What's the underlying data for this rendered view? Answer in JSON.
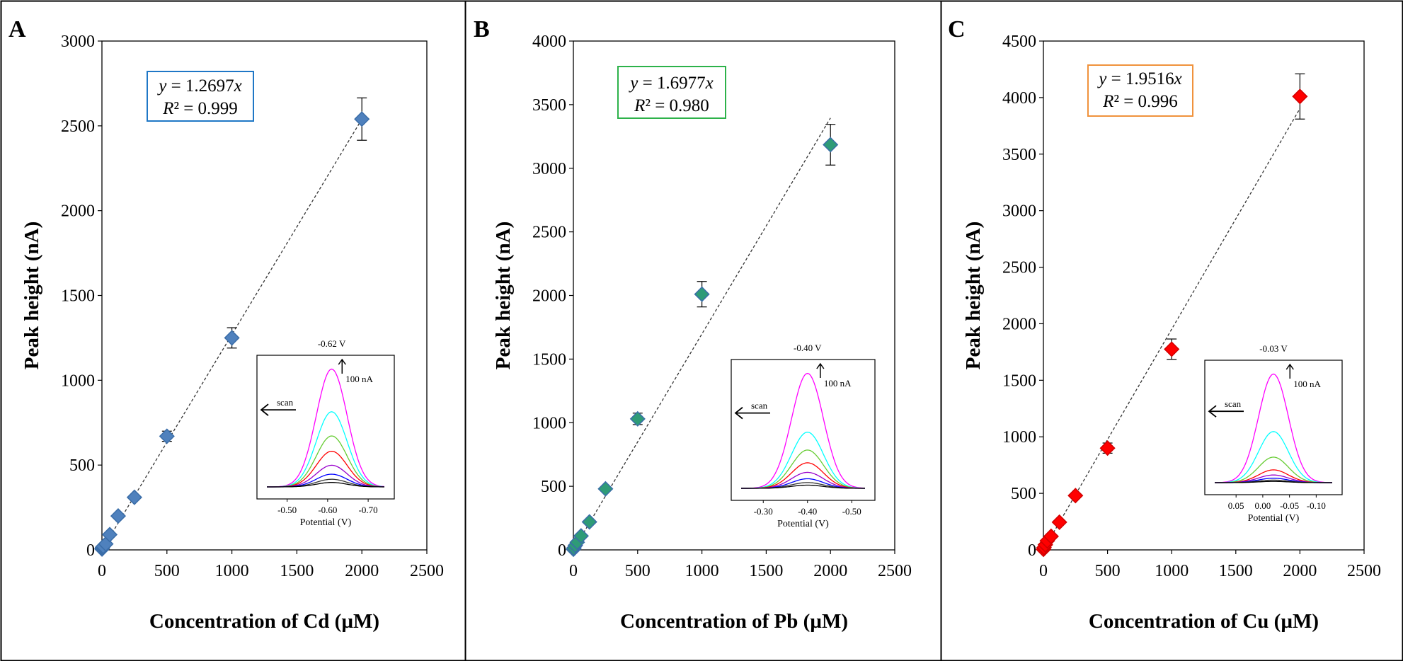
{
  "chart_data": [
    {
      "type": "scatter",
      "panel_label": "A",
      "xlabel": "Concentration of Cd (µM)",
      "ylabel": "Peak height (nA)",
      "xlim": [
        0,
        2500
      ],
      "ylim": [
        0,
        3000
      ],
      "xticks": [
        "0",
        "500",
        "1000",
        "1500",
        "2000",
        "2500"
      ],
      "yticks": [
        "0",
        "500",
        "1000",
        "1500",
        "2000",
        "2500",
        "3000"
      ],
      "marker_color": "#4F81BD",
      "marker_edge": "#3A6DA8",
      "box_color": "#1F77C6",
      "equation_y": "y",
      "equation_rhs": " = 1.2697",
      "equation_x": "x",
      "equation_R": "R",
      "equation_r2": "² = 0.999",
      "slope": 1.2697,
      "fit_x_range": [
        0,
        2000
      ],
      "points": [
        {
          "x": 0.5,
          "y": 5,
          "err": 0
        },
        {
          "x": 2,
          "y": 10,
          "err": 0
        },
        {
          "x": 5,
          "y": 15,
          "err": 0
        },
        {
          "x": 10,
          "y": 20,
          "err": 0
        },
        {
          "x": 30,
          "y": 35,
          "err": 0
        },
        {
          "x": 60,
          "y": 90,
          "err": 0
        },
        {
          "x": 125,
          "y": 200,
          "err": 0
        },
        {
          "x": 250,
          "y": 310,
          "err": 0
        },
        {
          "x": 500,
          "y": 670,
          "err": 30
        },
        {
          "x": 1000,
          "y": 1250,
          "err": 60
        },
        {
          "x": 2000,
          "y": 2540,
          "err": 125
        }
      ],
      "inset": {
        "peak_label": "-0.62 V",
        "scale_label": "100 nA",
        "scan_label": "scan",
        "xlabel": "Potential (V)",
        "xtick_labels": [
          "-0.50",
          "-0.60",
          "-0.70"
        ],
        "xtick_values": [
          -0.5,
          -0.6,
          -0.7
        ],
        "xrange": [
          -0.45,
          -0.74
        ],
        "peak_center": -0.61,
        "peak_width": 0.038,
        "curve_heights": [
          185,
          118,
          80,
          56,
          34,
          20,
          12,
          7
        ],
        "ymax": 200
      }
    },
    {
      "type": "scatter",
      "panel_label": "B",
      "xlabel": "Concentration of Pb (µM)",
      "ylabel": "Peak height (nA)",
      "xlim": [
        0,
        2500
      ],
      "ylim": [
        0,
        4000
      ],
      "xticks": [
        "0",
        "500",
        "1000",
        "1500",
        "2000",
        "2500"
      ],
      "yticks": [
        "0",
        "500",
        "1000",
        "1500",
        "2000",
        "2500",
        "3000",
        "3500",
        "4000"
      ],
      "marker_color": "#2E9B77",
      "marker_edge": "#3A6DA8",
      "box_color": "#2DB24A",
      "equation_y": "y",
      "equation_rhs": " = 1.6977",
      "equation_x": "x",
      "equation_R": "R",
      "equation_r2": "² = 0.980",
      "slope": 1.6977,
      "fit_x_range": [
        0,
        2000
      ],
      "points": [
        {
          "x": 0.5,
          "y": 5,
          "err": 0
        },
        {
          "x": 5,
          "y": 15,
          "err": 0
        },
        {
          "x": 15,
          "y": 35,
          "err": 0
        },
        {
          "x": 30,
          "y": 60,
          "err": 0
        },
        {
          "x": 60,
          "y": 110,
          "err": 0
        },
        {
          "x": 125,
          "y": 220,
          "err": 0
        },
        {
          "x": 250,
          "y": 480,
          "err": 0
        },
        {
          "x": 500,
          "y": 1030,
          "err": 45
        },
        {
          "x": 1000,
          "y": 2010,
          "err": 100
        },
        {
          "x": 2000,
          "y": 3185,
          "err": 160
        }
      ],
      "inset": {
        "peak_label": "-0.40 V",
        "scale_label": "100 nA",
        "scan_label": "scan",
        "xlabel": "Potential (V)",
        "xtick_labels": [
          "-0.30",
          "-0.40",
          "-0.50"
        ],
        "xtick_values": [
          -0.3,
          -0.4,
          -0.5
        ],
        "xrange": [
          -0.25,
          -0.53
        ],
        "peak_center": -0.4,
        "peak_width": 0.036,
        "curve_heights": [
          180,
          88,
          60,
          40,
          25,
          15,
          9,
          5
        ],
        "ymax": 195
      }
    },
    {
      "type": "scatter",
      "panel_label": "C",
      "xlabel": "Concentration of Cu (µM)",
      "ylabel": "Peak height (nA)",
      "xlim": [
        0,
        2500
      ],
      "ylim": [
        0,
        4500
      ],
      "xticks": [
        "0",
        "500",
        "1000",
        "1500",
        "2000",
        "2500"
      ],
      "yticks": [
        "0",
        "500",
        "1000",
        "1500",
        "2000",
        "2500",
        "3000",
        "3500",
        "4000",
        "4500"
      ],
      "marker_color": "#FF0000",
      "marker_edge": "#D00000",
      "box_color": "#F0923C",
      "equation_y": "y",
      "equation_rhs": " = 1.9516",
      "equation_x": "x",
      "equation_R": "R",
      "equation_r2": "² = 0.996",
      "slope": 1.9516,
      "fit_x_range": [
        0,
        2000
      ],
      "points": [
        {
          "x": 0.5,
          "y": 5,
          "err": 0
        },
        {
          "x": 5,
          "y": 20,
          "err": 0
        },
        {
          "x": 15,
          "y": 45,
          "err": 0
        },
        {
          "x": 30,
          "y": 80,
          "err": 0
        },
        {
          "x": 60,
          "y": 120,
          "err": 0
        },
        {
          "x": 125,
          "y": 245,
          "err": 0
        },
        {
          "x": 250,
          "y": 480,
          "err": 0
        },
        {
          "x": 500,
          "y": 900,
          "err": 45
        },
        {
          "x": 1000,
          "y": 1775,
          "err": 90
        },
        {
          "x": 2000,
          "y": 4010,
          "err": 200
        }
      ],
      "inset": {
        "peak_label": "-0.03 V",
        "scale_label": "100 nA",
        "scan_label": "scan",
        "xlabel": "Potential (V)",
        "xtick_labels": [
          "0.05",
          "0.00",
          "-0.05",
          "-0.10"
        ],
        "xtick_values": [
          0.05,
          0.0,
          -0.05,
          -0.1
        ],
        "xrange": [
          0.09,
          -0.13
        ],
        "peak_center": -0.02,
        "peak_width": 0.028,
        "curve_heights": [
          170,
          80,
          40,
          20,
          12,
          7,
          4,
          2
        ],
        "ymax": 185
      }
    }
  ],
  "inset_curve_colors": [
    "#FF00FF",
    "#00FFFF",
    "#66CC33",
    "#FF0000",
    "#9900CC",
    "#0000FF",
    "#333333",
    "#000000"
  ]
}
